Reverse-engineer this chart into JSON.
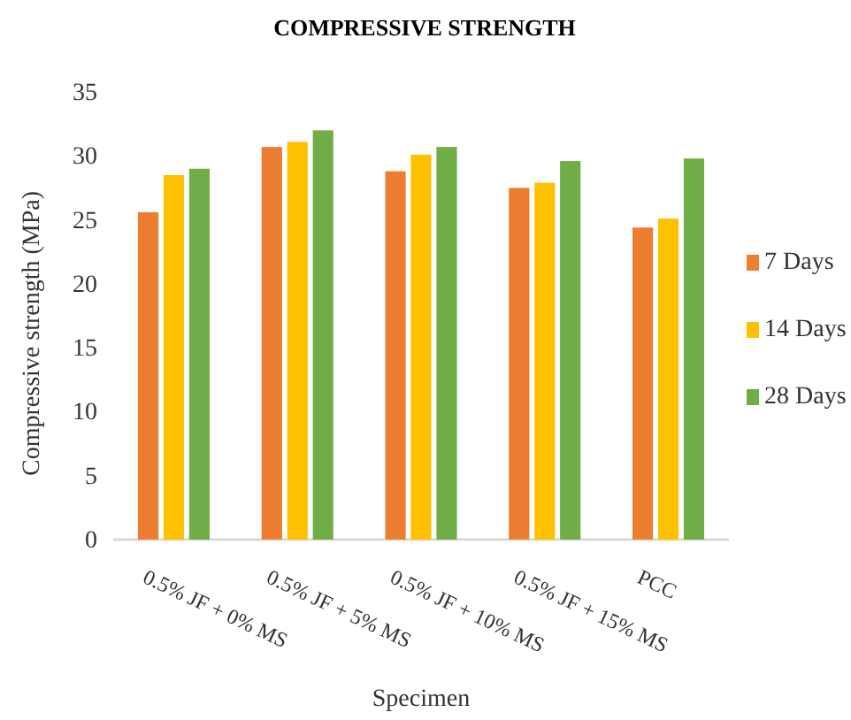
{
  "chart_data": {
    "type": "bar",
    "title": "COMPRESSIVE STRENGTH",
    "xlabel": "Specimen",
    "ylabel": "Compressive strength (MPa)",
    "categories": [
      "0.5% JF + 0% MS",
      "0.5% JF + 5% MS",
      "0.5% JF + 10% MS",
      "0.5% JF + 15% MS",
      "PCC"
    ],
    "series": [
      {
        "name": "7 Days",
        "color": "#ed7d31",
        "values": [
          25.6,
          30.7,
          28.8,
          27.5,
          24.4
        ]
      },
      {
        "name": "14 Days",
        "color": "#ffc000",
        "values": [
          28.5,
          31.1,
          30.1,
          27.9,
          25.1
        ]
      },
      {
        "name": "28 Days",
        "color": "#70ad47",
        "values": [
          29.0,
          32.0,
          30.7,
          29.6,
          29.8
        ]
      }
    ],
    "ylim": [
      0,
      35
    ],
    "yticks": [
      0,
      5,
      10,
      15,
      20,
      25,
      30,
      35
    ],
    "grid": false,
    "legend": "right"
  }
}
